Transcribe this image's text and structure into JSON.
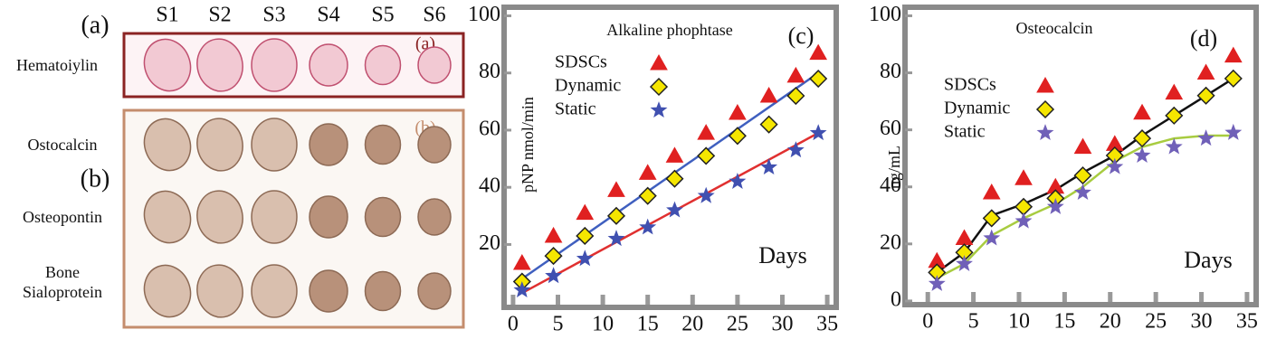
{
  "histology": {
    "panel_labels": [
      "(a)",
      "(b)"
    ],
    "columns": [
      "S1",
      "S2",
      "S3",
      "S4",
      "S5",
      "S6"
    ],
    "rows": [
      "Hematoiylin",
      "Ostocalcin",
      "Osteopontin",
      "Bone Sialoprotein"
    ],
    "box_labels": [
      "(a)",
      "(b)"
    ]
  },
  "chart_data": [
    {
      "type": "scatter",
      "title": "Alkaline phophtase",
      "panel": "(c)",
      "ylabel": "pNP nmol/min",
      "annotation": "Days",
      "x": [
        1,
        4.5,
        8,
        11.5,
        15,
        18,
        21.5,
        25,
        28.5,
        31.5,
        34
      ],
      "series": [
        {
          "name": "SDSCs",
          "color": "#e02020",
          "marker": "triangle",
          "values": [
            13.5,
            23,
            31,
            39,
            45,
            51,
            59,
            66,
            72,
            79,
            87
          ]
        },
        {
          "name": "Dynamic",
          "color": "#f5e600",
          "marker": "diamond",
          "values": [
            7,
            16,
            23,
            30,
            37,
            43,
            51,
            58,
            62,
            72,
            78
          ]
        },
        {
          "name": "Static",
          "color": "#4050b0",
          "marker": "star",
          "values": [
            4,
            9,
            15,
            22,
            26,
            32,
            37,
            42,
            47,
            53,
            59
          ]
        }
      ],
      "lines": [
        {
          "color": "#3f5fbf",
          "x": [
            1,
            34
          ],
          "values": [
            8,
            80
          ]
        },
        {
          "color": "#e03030",
          "x": [
            1,
            34
          ],
          "values": [
            3,
            59
          ]
        }
      ],
      "xlim": [
        -1,
        36
      ],
      "ylim": [
        -2,
        103
      ],
      "xticks": [
        0,
        5,
        10,
        15,
        20,
        25,
        30,
        35
      ],
      "yticks": [
        20,
        40,
        60,
        80,
        100
      ],
      "legend": "upper left"
    },
    {
      "type": "scatter",
      "title": "Osteocalcin",
      "panel": "(d)",
      "ylabel": "ng/mL",
      "annotation": "Days",
      "x": [
        1,
        4,
        7,
        10.5,
        14,
        17,
        20.5,
        23.5,
        27,
        30.5,
        33.5
      ],
      "series": [
        {
          "name": "SDSCs",
          "color": "#e02020",
          "marker": "triangle",
          "values": [
            14,
            22,
            38,
            43,
            40,
            54,
            55,
            66,
            73,
            80,
            86
          ]
        },
        {
          "name": "Dynamic",
          "color": "#f5e600",
          "marker": "diamond",
          "values": [
            10,
            17,
            29,
            33,
            36,
            44,
            51,
            57,
            65,
            72,
            78
          ]
        },
        {
          "name": "Static",
          "color": "#7060b8",
          "marker": "star",
          "values": [
            6,
            13,
            22,
            28,
            33,
            38,
            47,
            51,
            54,
            57,
            59
          ]
        }
      ],
      "lines": [
        {
          "color": "#111111",
          "x": [
            1,
            4,
            7,
            10.5,
            14,
            17,
            20.5,
            23.5,
            27,
            30.5,
            33.5
          ],
          "values": [
            10,
            17,
            30,
            34,
            39,
            45,
            51,
            58,
            65,
            72,
            78
          ]
        },
        {
          "color": "#a8cc40",
          "x": [
            1,
            4,
            7,
            10.5,
            14,
            17,
            20.5,
            23.5,
            27,
            30.5,
            33.5
          ],
          "values": [
            8,
            13,
            23,
            29,
            34,
            40,
            49,
            54,
            57,
            58,
            58
          ]
        }
      ],
      "xlim": [
        -2.5,
        36
      ],
      "ylim": [
        -1.3,
        103
      ],
      "xticks": [
        0,
        5,
        10,
        15,
        20,
        25,
        30,
        35
      ],
      "yticks": [
        0,
        20,
        40,
        60,
        80,
        100
      ],
      "legend": "upper left"
    }
  ]
}
